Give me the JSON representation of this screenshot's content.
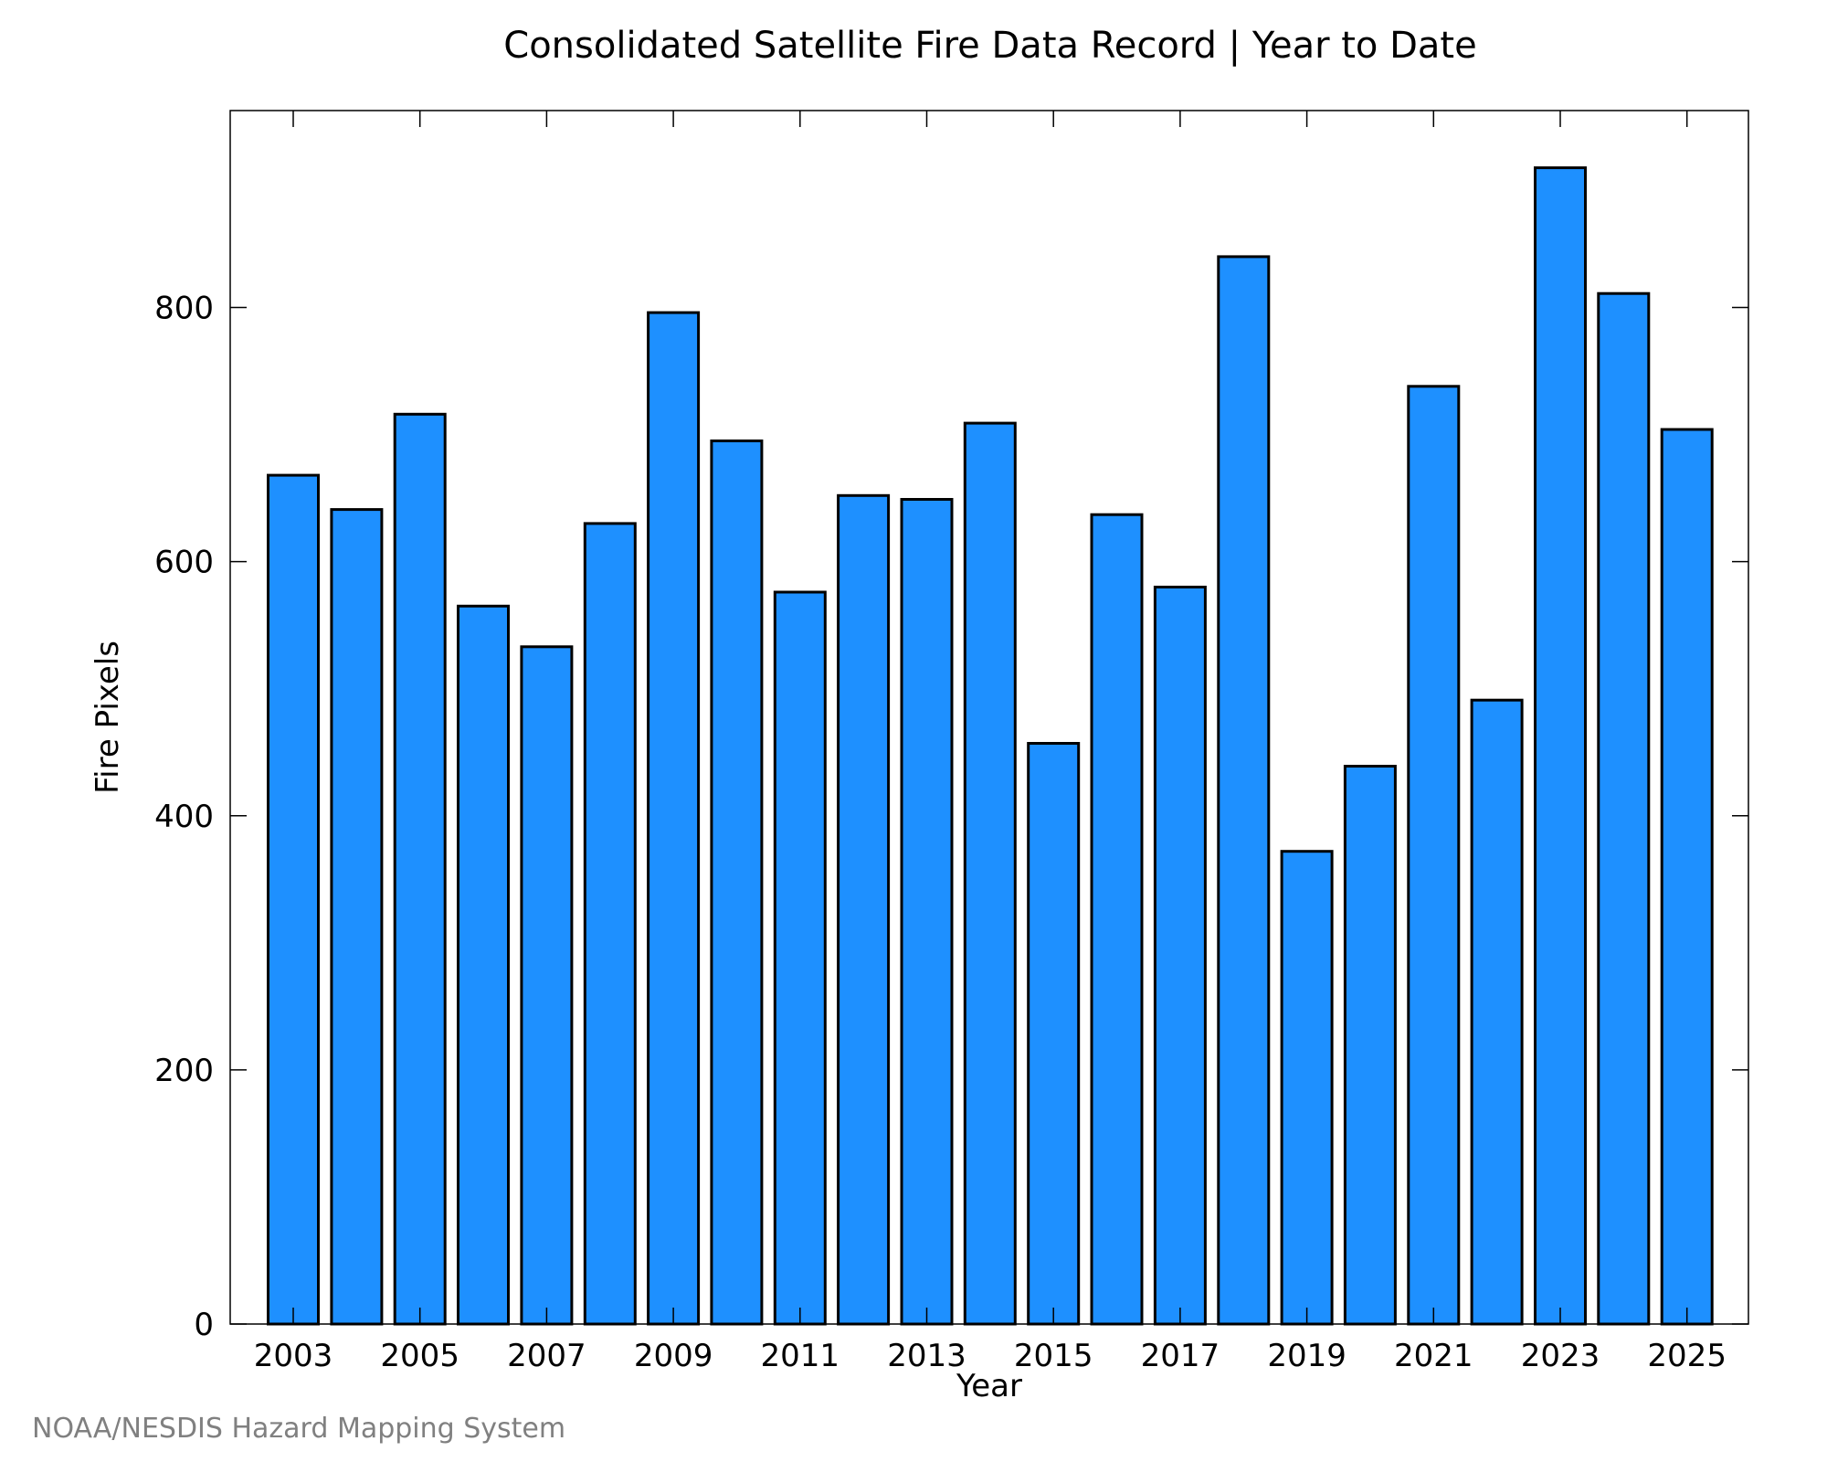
{
  "chart_data": {
    "type": "bar",
    "title": "Consolidated Satellite Fire Data Record | Year to Date",
    "xlabel": "Year",
    "ylabel": "Fire Pixels",
    "categories": [
      "2003",
      "2004",
      "2005",
      "2006",
      "2007",
      "2008",
      "2009",
      "2010",
      "2011",
      "2012",
      "2013",
      "2014",
      "2015",
      "2016",
      "2017",
      "2018",
      "2019",
      "2020",
      "2021",
      "2022",
      "2023",
      "2024",
      "2025"
    ],
    "values": [
      668,
      641,
      716,
      565,
      533,
      630,
      796,
      695,
      576,
      652,
      649,
      709,
      457,
      637,
      580,
      840,
      372,
      439,
      738,
      491,
      910,
      811,
      704
    ],
    "x_tick_labels": [
      "2003",
      "2005",
      "2007",
      "2009",
      "2011",
      "2013",
      "2015",
      "2017",
      "2019",
      "2021",
      "2023",
      "2025"
    ],
    "y_ticks": [
      0,
      200,
      400,
      600,
      800
    ],
    "ylim": [
      0,
      955
    ],
    "bar_color": "#1e90ff",
    "grid": false,
    "credit": "NOAA/NESDIS Hazard Mapping System"
  }
}
